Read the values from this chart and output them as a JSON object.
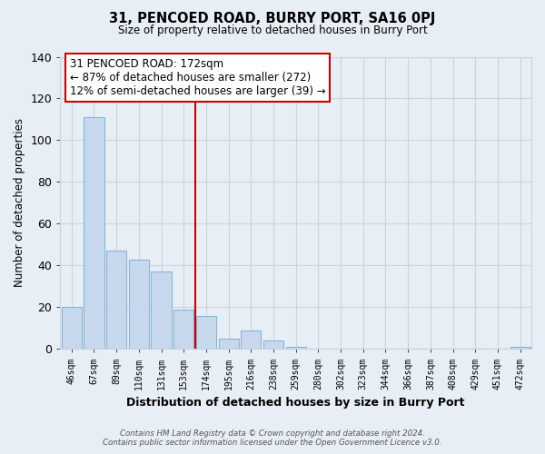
{
  "title": "31, PENCOED ROAD, BURRY PORT, SA16 0PJ",
  "subtitle": "Size of property relative to detached houses in Burry Port",
  "xlabel": "Distribution of detached houses by size in Burry Port",
  "ylabel": "Number of detached properties",
  "bin_labels": [
    "46sqm",
    "67sqm",
    "89sqm",
    "110sqm",
    "131sqm",
    "153sqm",
    "174sqm",
    "195sqm",
    "216sqm",
    "238sqm",
    "259sqm",
    "280sqm",
    "302sqm",
    "323sqm",
    "344sqm",
    "366sqm",
    "387sqm",
    "408sqm",
    "429sqm",
    "451sqm",
    "472sqm"
  ],
  "bar_heights": [
    20,
    111,
    47,
    43,
    37,
    19,
    16,
    5,
    9,
    4,
    1,
    0,
    0,
    0,
    0,
    0,
    0,
    0,
    0,
    0,
    1
  ],
  "bar_color": "#c8d8ec",
  "bar_edge_color": "#8ab4d4",
  "vline_x_index": 6,
  "vline_color": "#cc0000",
  "annotation_title": "31 PENCOED ROAD: 172sqm",
  "annotation_line1": "← 87% of detached houses are smaller (272)",
  "annotation_line2": "12% of semi-detached houses are larger (39) →",
  "annotation_box_color": "#ffffff",
  "annotation_box_edge": "#cc0000",
  "ylim": [
    0,
    140
  ],
  "yticks": [
    0,
    20,
    40,
    60,
    80,
    100,
    120,
    140
  ],
  "footer_line1": "Contains HM Land Registry data © Crown copyright and database right 2024.",
  "footer_line2": "Contains public sector information licensed under the Open Government Licence v3.0.",
  "background_color": "#ffffff",
  "grid_color": "#c8d4e0",
  "fig_bg_color": "#e8eef5"
}
